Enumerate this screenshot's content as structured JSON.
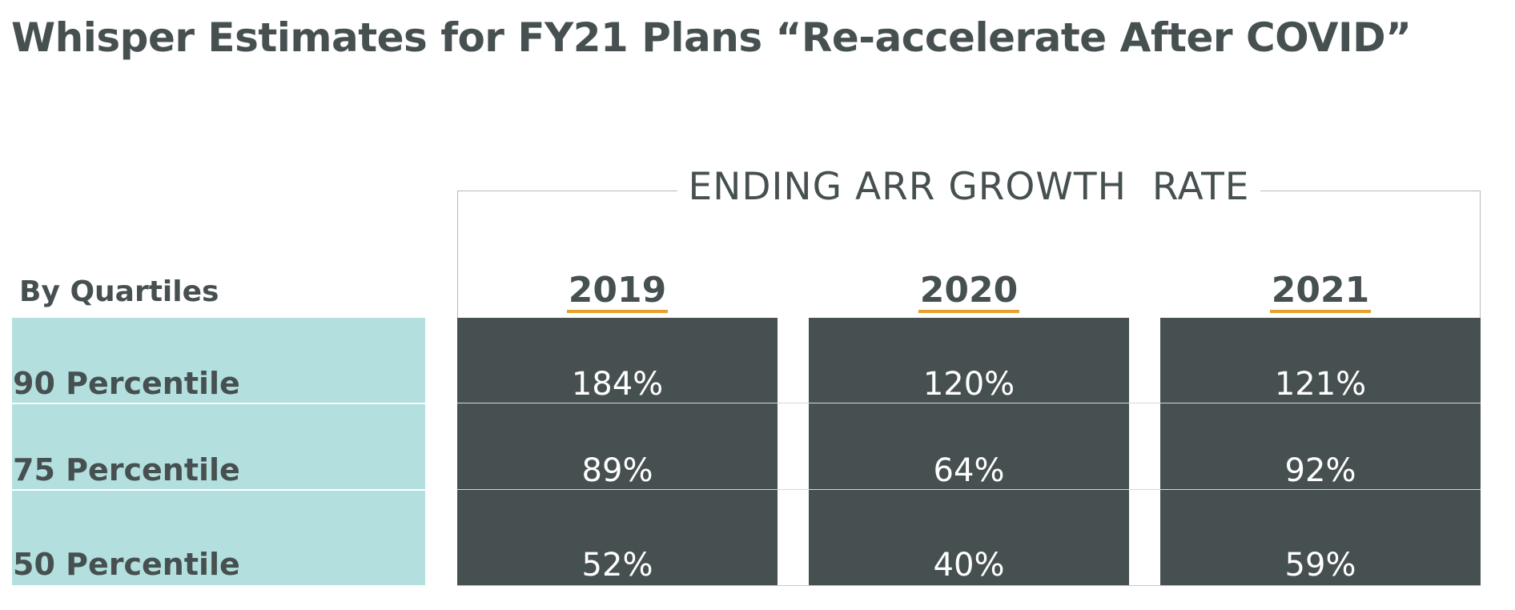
{
  "title": "Whisper Estimates for FY21 Plans “Re-accelerate After COVID”",
  "chart_data": {
    "type": "table",
    "title": "Whisper Estimates for FY21 Plans “Re-accelerate After COVID”",
    "header": "ENDING ARR GROWTH  RATE",
    "row_header": "By Quartiles",
    "columns": [
      "2019",
      "2020",
      "2021"
    ],
    "rows": [
      {
        "label": "90 Percentile",
        "values": [
          "184%",
          "120%",
          "121%"
        ]
      },
      {
        "label": "75 Percentile",
        "values": [
          "89%",
          "64%",
          "92%"
        ]
      },
      {
        "label": "50 Percentile",
        "values": [
          "52%",
          "40%",
          "59%"
        ]
      }
    ]
  },
  "colors": {
    "text": "#475051",
    "cell_background": "#475051",
    "label_background": "#b3e0de",
    "year_underline": "#e6a02c"
  }
}
